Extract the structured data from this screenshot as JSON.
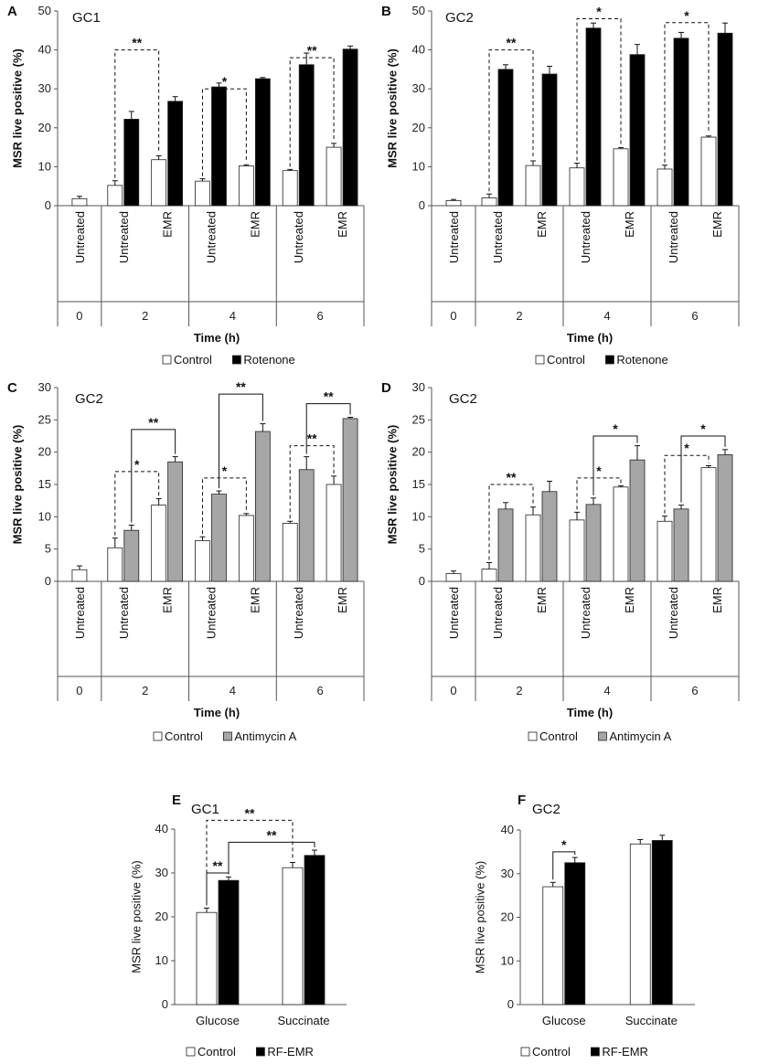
{
  "colors": {
    "control": "#ffffff",
    "rotenone": "#000000",
    "antimycin": "#a6a6a6",
    "rfemr": "#000000",
    "outline": "#222222"
  },
  "chart_data": [
    {
      "id": "A",
      "letter": "A",
      "title": "GC1",
      "type": "bar",
      "ylabel": "MSR live positive (%)",
      "xlabel": "Time (h)",
      "ylim": [
        0,
        50
      ],
      "yticks": [
        0,
        10,
        20,
        30,
        40,
        50
      ],
      "categories": [
        "Untreated",
        "Untreated",
        "EMR",
        "Untreated",
        "EMR",
        "Untreated",
        "EMR"
      ],
      "groups": [
        "0",
        "2",
        "4",
        "6"
      ],
      "series": [
        {
          "name": "Control",
          "values": [
            1.8,
            5.2,
            11.8,
            6.3,
            10.2,
            9.0,
            15.0
          ],
          "errors": [
            0.6,
            1.2,
            1.0,
            0.6,
            0.3,
            0.3,
            1.0
          ]
        },
        {
          "name": "Rotenone",
          "values": [
            null,
            22.2,
            26.8,
            30.5,
            32.6,
            36.2,
            40.2
          ],
          "errors": [
            null,
            2.0,
            1.2,
            1.0,
            0.3,
            3.0,
            0.8
          ]
        }
      ],
      "legend": [
        "Control",
        "Rotenone"
      ],
      "significance": [
        "**",
        "*",
        "**"
      ]
    },
    {
      "id": "B",
      "letter": "B",
      "title": "GC2",
      "type": "bar",
      "ylabel": "MSR live positive (%)",
      "xlabel": "Time (h)",
      "ylim": [
        0,
        50
      ],
      "yticks": [
        0,
        10,
        20,
        30,
        40,
        50
      ],
      "categories": [
        "Untreated",
        "Untreated",
        "EMR",
        "Untreated",
        "EMR",
        "Untreated",
        "EMR"
      ],
      "groups": [
        "0",
        "2",
        "4",
        "6"
      ],
      "series": [
        {
          "name": "Control",
          "values": [
            1.3,
            2.0,
            10.3,
            9.7,
            14.6,
            9.4,
            17.6
          ],
          "errors": [
            0.3,
            1.0,
            1.2,
            1.2,
            0.3,
            1.0,
            0.3
          ]
        },
        {
          "name": "Rotenone",
          "values": [
            null,
            35.0,
            33.8,
            45.6,
            38.8,
            43.0,
            44.3
          ],
          "errors": [
            null,
            1.2,
            2.0,
            1.3,
            2.6,
            1.5,
            2.6
          ]
        }
      ],
      "legend": [
        "Control",
        "Rotenone"
      ],
      "significance": [
        "**",
        "*",
        "*"
      ]
    },
    {
      "id": "C",
      "letter": "C",
      "title": "GC2",
      "type": "bar",
      "ylabel": "MSR live positive (%)",
      "xlabel": "Time (h)",
      "ylim": [
        0,
        30
      ],
      "yticks": [
        0,
        5,
        10,
        15,
        20,
        25,
        30
      ],
      "categories": [
        "Untreated",
        "Untreated",
        "EMR",
        "Untreated",
        "EMR",
        "Untreated",
        "EMR"
      ],
      "groups": [
        "0",
        "2",
        "4",
        "6"
      ],
      "series": [
        {
          "name": "Control",
          "values": [
            1.8,
            5.2,
            11.8,
            6.3,
            10.2,
            9.0,
            15.0
          ],
          "errors": [
            0.6,
            1.5,
            1.0,
            0.6,
            0.3,
            0.3,
            1.3
          ]
        },
        {
          "name": "Antimycin A",
          "values": [
            null,
            7.9,
            18.5,
            13.5,
            23.2,
            17.3,
            25.2
          ],
          "errors": [
            null,
            0.8,
            0.8,
            0.5,
            1.2,
            2.0,
            0.2
          ]
        }
      ],
      "legend": [
        "Control",
        "Antimycin A"
      ],
      "significance": [
        "*",
        "**",
        "*",
        "**",
        "**",
        "**"
      ]
    },
    {
      "id": "D",
      "letter": "D",
      "title": "GC2",
      "type": "bar",
      "ylabel": "MSR live positive (%)",
      "xlabel": "Time (h)",
      "ylim": [
        0,
        30
      ],
      "yticks": [
        0,
        5,
        10,
        15,
        20,
        25,
        30
      ],
      "categories": [
        "Untreated",
        "Untreated",
        "EMR",
        "Untreated",
        "EMR",
        "Untreated",
        "EMR"
      ],
      "groups": [
        "0",
        "2",
        "4",
        "6"
      ],
      "series": [
        {
          "name": "Control",
          "values": [
            1.2,
            1.9,
            10.3,
            9.5,
            14.6,
            9.3,
            17.6
          ],
          "errors": [
            0.4,
            1.0,
            1.2,
            1.2,
            0.2,
            0.8,
            0.3
          ]
        },
        {
          "name": "Antimycin A",
          "values": [
            null,
            11.2,
            13.9,
            11.9,
            18.8,
            11.2,
            19.6
          ],
          "errors": [
            null,
            1.0,
            1.6,
            1.0,
            2.2,
            0.6,
            0.8
          ]
        }
      ],
      "legend": [
        "Control",
        "Antimycin A"
      ],
      "significance": [
        "**",
        "*",
        "*",
        "*",
        "*"
      ]
    },
    {
      "id": "E",
      "letter": "E",
      "title": "GC1",
      "type": "bar",
      "ylabel": "MSR live positive (%)",
      "xlabel": "",
      "ylim": [
        0,
        40
      ],
      "yticks": [
        0,
        10,
        20,
        30,
        40
      ],
      "categories": [
        "Glucose",
        "Succinate"
      ],
      "series": [
        {
          "name": "Control",
          "values": [
            21.0,
            31.2
          ],
          "errors": [
            1.0,
            1.2
          ]
        },
        {
          "name": "RF-EMR",
          "values": [
            28.3,
            34.0
          ],
          "errors": [
            0.8,
            1.2
          ]
        }
      ],
      "legend": [
        "Control",
        "RF-EMR"
      ],
      "significance": [
        "**",
        "**",
        "**"
      ]
    },
    {
      "id": "F",
      "letter": "F",
      "title": "GC2",
      "type": "bar",
      "ylabel": "MSR live positive (%)",
      "xlabel": "",
      "ylim": [
        0,
        40
      ],
      "yticks": [
        0,
        10,
        20,
        30,
        40
      ],
      "categories": [
        "Glucose",
        "Succinate"
      ],
      "series": [
        {
          "name": "Control",
          "values": [
            27.0,
            36.8
          ],
          "errors": [
            1.0,
            1.0
          ]
        },
        {
          "name": "RF-EMR",
          "values": [
            32.5,
            37.6
          ],
          "errors": [
            1.2,
            1.2
          ]
        }
      ],
      "legend": [
        "Control",
        "RF-EMR"
      ],
      "significance": [
        "*"
      ]
    }
  ]
}
